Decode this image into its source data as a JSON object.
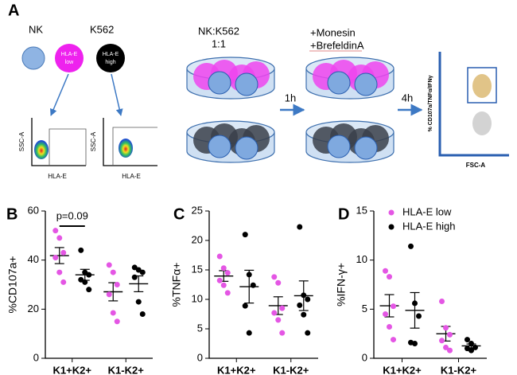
{
  "diagram": {
    "label": "A",
    "nk": "NK",
    "k562": "K562",
    "circle_low": [
      "HLA-E",
      "low"
    ],
    "circle_high": [
      "HLA-E",
      "high"
    ],
    "plots": [
      {
        "y_label": "SSC-A",
        "x_label": "HLA-E"
      },
      {
        "y_label": "SSC-A",
        "x_label": "HLA-E"
      }
    ],
    "ratio": [
      "NK:K562",
      "1:1"
    ],
    "treatment": [
      "+Monesin",
      "+BrefeldinA"
    ],
    "step1": "1h",
    "step2": "4h",
    "result_y": "% CD107a/TNFα/IFNγ",
    "result_x": "FSC-A"
  },
  "chart_data": [
    {
      "type": "dot",
      "panel": "B",
      "ylabel": "%CD107a+",
      "categories": [
        "K1+K2+",
        "K1-K2+"
      ],
      "series": [
        {
          "color": "#e456e4",
          "values": [
            [
              52,
              49,
              43,
              41,
              35,
              31
            ],
            [
              38,
              35,
              30,
              26,
              18.5,
              15
            ]
          ]
        },
        {
          "color": "#000000",
          "values": [
            [
              44,
              35,
              34,
              32,
              31,
              28
            ],
            [
              37,
              36,
              35,
              33,
              23,
              18
            ]
          ]
        }
      ],
      "ylim": [
        0,
        60
      ],
      "yticks": [
        0,
        20,
        40,
        60
      ],
      "annotation": "p=0.09"
    },
    {
      "type": "dot",
      "panel": "C",
      "ylabel": "%TNFα+",
      "categories": [
        "K1+K2+",
        "K1-K2+"
      ],
      "series": [
        {
          "color": "#e456e4",
          "values": [
            [
              17.3,
              15.3,
              14.5,
              13.2,
              12.4,
              11.1
            ],
            [
              13.8,
              12.8,
              8.5,
              7.7,
              6.5,
              4.3
            ]
          ]
        },
        {
          "color": "#000000",
          "values": [
            [
              21,
              14.2,
              12.4,
              8.9,
              4.3
            ],
            [
              22.3,
              10.7,
              10,
              9,
              7.4,
              4.3
            ]
          ]
        }
      ],
      "ylim": [
        0,
        25
      ],
      "yticks": [
        0,
        5,
        10,
        15,
        20,
        25
      ]
    },
    {
      "type": "dot",
      "panel": "D",
      "ylabel": "%IFN-γ+",
      "categories": [
        "K1+K2+",
        "K1-K2+"
      ],
      "series": [
        {
          "name": "HLA-E low",
          "color": "#e456e4",
          "values": [
            [
              8.9,
              8.3,
              5.3,
              4.5,
              3.2,
              1.9
            ],
            [
              5.8,
              3.1,
              2.4,
              1.8,
              1.1,
              0.8
            ]
          ]
        },
        {
          "name": "HLA-E high",
          "color": "#000000",
          "values": [
            [
              11.4,
              5.6,
              4.3,
              1.6,
              1.5
            ],
            [
              1.9,
              1.5,
              1.1,
              1,
              0.8
            ]
          ]
        }
      ],
      "ylim": [
        0,
        15
      ],
      "yticks": [
        0,
        5,
        10,
        15
      ],
      "legend": "upper right"
    }
  ]
}
